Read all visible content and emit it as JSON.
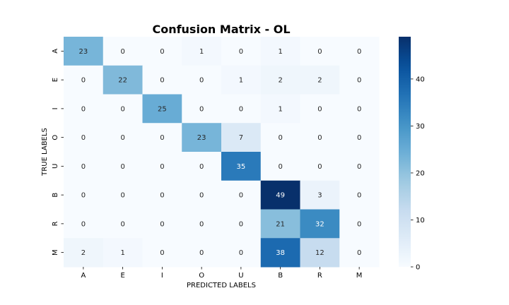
{
  "chart_data": {
    "type": "heatmap",
    "title": "Confusion Matrix - OL",
    "xlabel": "PREDICTED LABELS",
    "ylabel": "TRUE LABELS",
    "x_categories": [
      "A",
      "E",
      "I",
      "O",
      "U",
      "B",
      "R",
      "M"
    ],
    "y_categories": [
      "A",
      "E",
      "I",
      "O",
      "U",
      "B",
      "R",
      "M"
    ],
    "values": [
      [
        23,
        0,
        0,
        1,
        0,
        1,
        0,
        0
      ],
      [
        0,
        22,
        0,
        0,
        1,
        2,
        2,
        0
      ],
      [
        0,
        0,
        25,
        0,
        0,
        1,
        0,
        0
      ],
      [
        0,
        0,
        0,
        23,
        7,
        0,
        0,
        0
      ],
      [
        0,
        0,
        0,
        0,
        35,
        0,
        0,
        0
      ],
      [
        0,
        0,
        0,
        0,
        0,
        49,
        3,
        0
      ],
      [
        0,
        0,
        0,
        0,
        0,
        21,
        32,
        0
      ],
      [
        2,
        1,
        0,
        0,
        0,
        38,
        12,
        0
      ]
    ],
    "colormap": "Blues",
    "value_range": [
      0,
      49
    ],
    "colorbar": {
      "ticks": [
        0,
        10,
        20,
        30,
        40
      ]
    },
    "grid": false,
    "legend": "colorbar-right"
  }
}
